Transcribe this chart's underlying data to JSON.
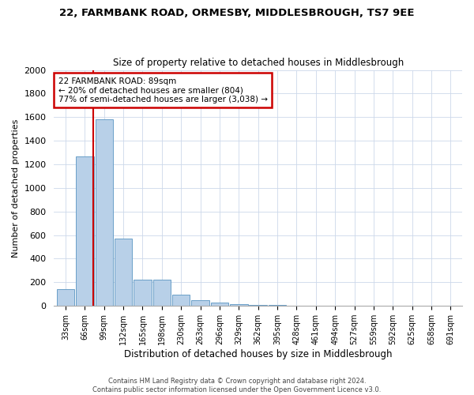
{
  "title": "22, FARMBANK ROAD, ORMESBY, MIDDLESBROUGH, TS7 9EE",
  "subtitle": "Size of property relative to detached houses in Middlesbrough",
  "xlabel": "Distribution of detached houses by size in Middlesbrough",
  "ylabel": "Number of detached properties",
  "footer1": "Contains HM Land Registry data © Crown copyright and database right 2024.",
  "footer2": "Contains public sector information licensed under the Open Government Licence v3.0.",
  "bar_labels": [
    "33sqm",
    "66sqm",
    "99sqm",
    "132sqm",
    "165sqm",
    "198sqm",
    "230sqm",
    "263sqm",
    "296sqm",
    "329sqm",
    "362sqm",
    "395sqm",
    "428sqm",
    "461sqm",
    "494sqm",
    "527sqm",
    "559sqm",
    "592sqm",
    "625sqm",
    "658sqm",
    "691sqm"
  ],
  "bar_values": [
    140,
    1270,
    1580,
    570,
    220,
    220,
    95,
    50,
    25,
    15,
    10,
    5,
    0,
    0,
    0,
    0,
    0,
    0,
    0,
    0,
    0
  ],
  "bar_color": "#b8d0e8",
  "bar_edge_color": "#6a9fc8",
  "ylim": [
    0,
    2000
  ],
  "yticks": [
    0,
    200,
    400,
    600,
    800,
    1000,
    1200,
    1400,
    1600,
    1800,
    2000
  ],
  "property_bin_index": 1,
  "vline_x": 1.42,
  "annotation_text": "22 FARMBANK ROAD: 89sqm\n← 20% of detached houses are smaller (804)\n77% of semi-detached houses are larger (3,038) →",
  "annotation_box_color": "#ffffff",
  "annotation_border_color": "#cc0000",
  "vline_color": "#cc0000",
  "bg_color": "#ffffff",
  "grid_color": "#ccd8ea"
}
